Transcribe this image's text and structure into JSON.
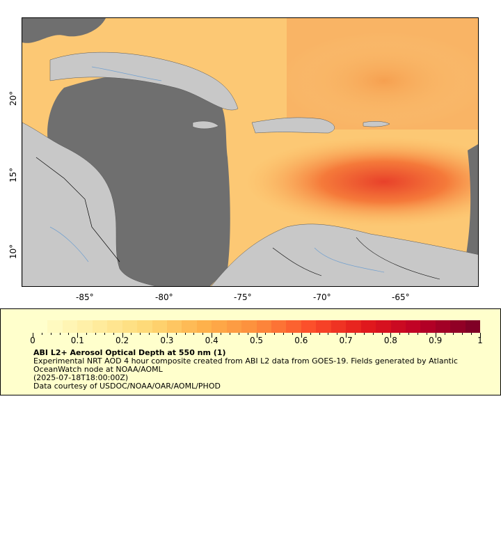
{
  "map": {
    "x_axis": {
      "ticks": [
        "-85°",
        "-80°",
        "-75°",
        "-70°",
        "-65°"
      ]
    },
    "y_axis": {
      "ticks": [
        "20°",
        "15°",
        "10°"
      ]
    },
    "extent": {
      "lon_min": -89,
      "lon_max": -60,
      "lat_min": 7.7,
      "lat_max": 24.9
    },
    "colors": {
      "ocean_masked": "#6f6f6f",
      "land": "#c8c8c8",
      "borders": "#000000",
      "rivers": "#6f9fd0"
    }
  },
  "legend": {
    "colorbar_labels": [
      "0",
      "0.1",
      "0.2",
      "0.3",
      "0.4",
      "0.5",
      "0.6",
      "0.7",
      "0.8",
      "0.9",
      "1"
    ],
    "colorbar_colors": [
      "#ffffcc",
      "#ffeda0",
      "#fed976",
      "#feb24c",
      "#fd8d3c",
      "#fc4e2a",
      "#e31a1c",
      "#bd0026",
      "#800026"
    ],
    "title": "ABI L2+ Aerosol Optical Depth at 550 nm (1)",
    "description": "Experimental NRT AOD 4 hour composite created from ABI L2 data from GOES-19. Fields generated by Atlantic OceanWatch node at NOAA/AOML",
    "time": "(2025-07-18T18:00:00Z)",
    "credit": "Data courtesy of USDOC/NOAA/OAR/AOML/PHOD"
  }
}
